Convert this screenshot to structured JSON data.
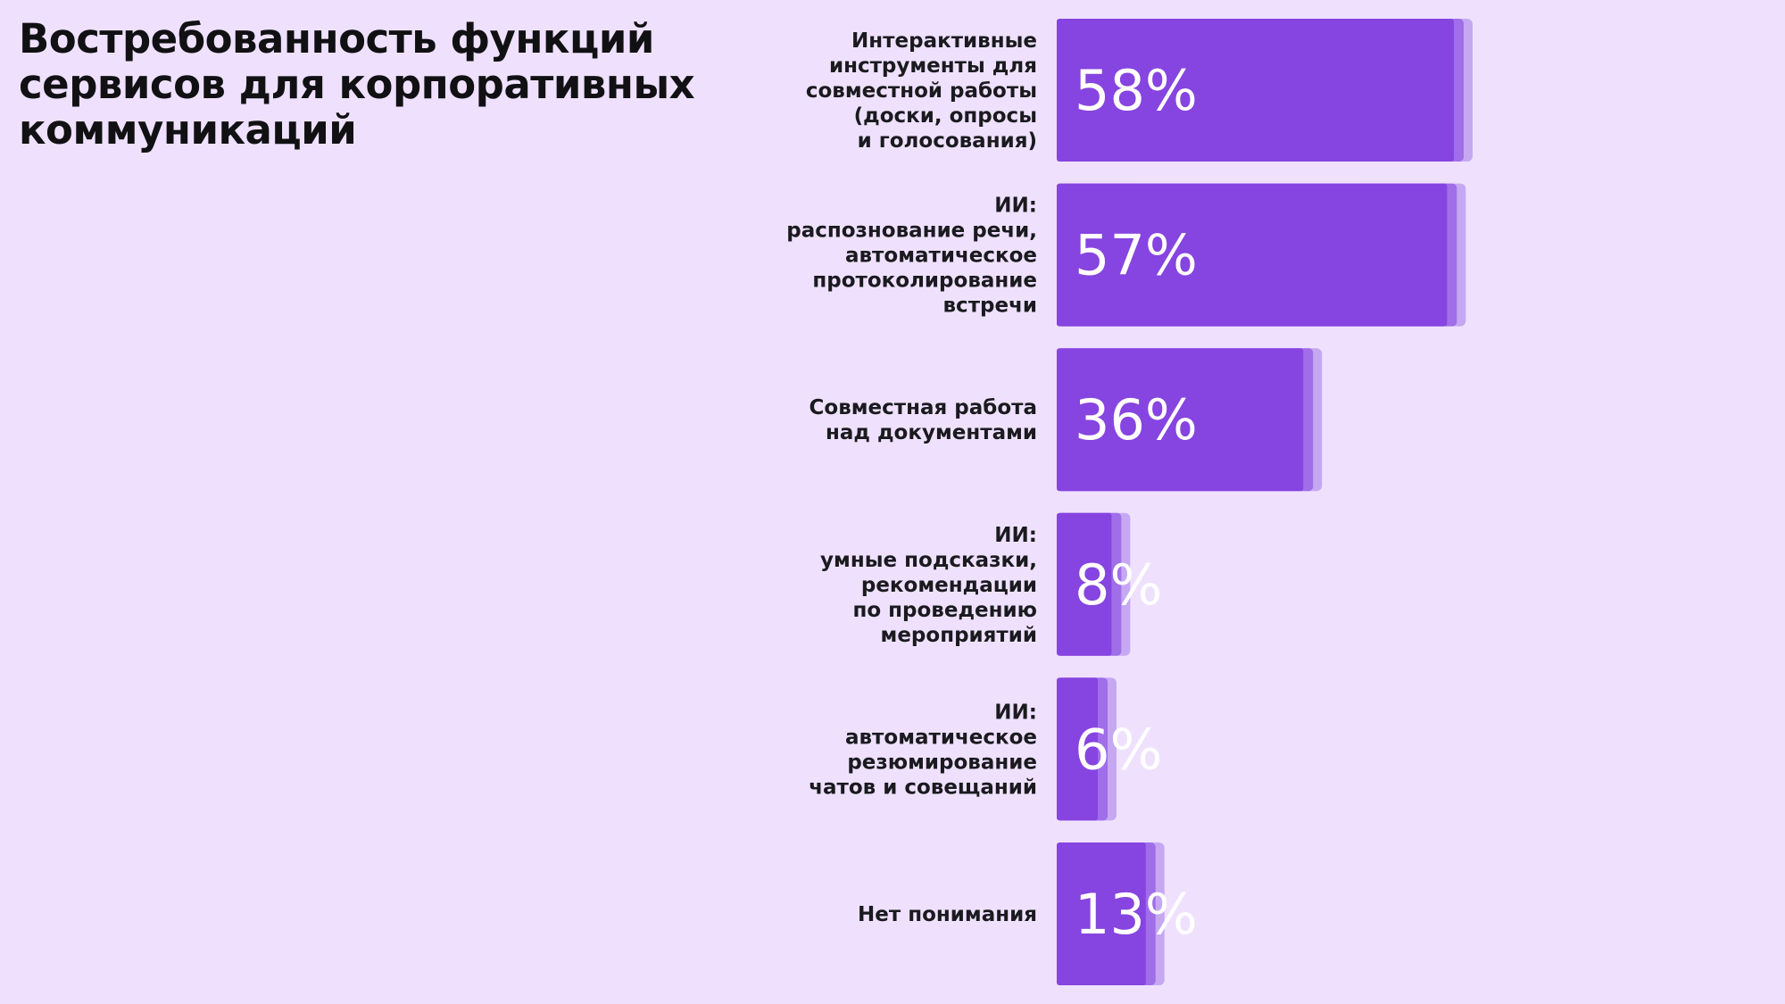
{
  "title": "Востребованность функций сервисов для корпоративных коммуникаций",
  "colors": {
    "background": "#efe1fe",
    "bar": "#8644e0",
    "bar_shadow_1": "#a06ee8",
    "bar_shadow_2": "#c6a8f2",
    "value_text": "#ffffff",
    "label_text": "#1a1a1f"
  },
  "chart_data": {
    "type": "bar",
    "orientation": "horizontal",
    "title": "Востребованность функций сервисов для корпоративных коммуникаций",
    "unit": "%",
    "xlim": [
      0,
      58
    ],
    "grid": false,
    "legend": "none",
    "categories": [
      [
        "Интерактивные",
        "инструменты для",
        "совместной работы",
        "(доски, опросы",
        "и голосования)"
      ],
      [
        "ИИ:",
        "распознование речи,",
        "автоматическое",
        "протоколирование",
        "встречи"
      ],
      [
        "Совместная работа",
        "над документами"
      ],
      [
        "ИИ:",
        "умные подсказки,",
        "рекомендации",
        "по проведению",
        "мероприятий"
      ],
      [
        "ИИ:",
        "автоматическое",
        "резюмирование",
        "чатов и совещаний"
      ],
      [
        "Нет понимания"
      ]
    ],
    "values": [
      58,
      57,
      36,
      8,
      6,
      13
    ],
    "value_labels": [
      "58%",
      "57%",
      "36%",
      "8%",
      "6%",
      "13%"
    ]
  }
}
